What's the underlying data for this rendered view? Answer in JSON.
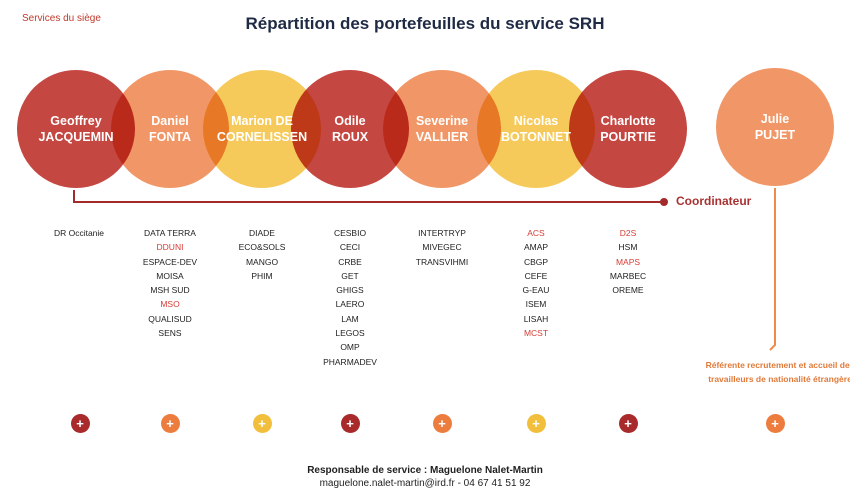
{
  "header": {
    "tag": "Services du siège",
    "title": "Répartition des portefeuilles du service SRH"
  },
  "people": [
    {
      "first": "Geoffrey",
      "last": "JACQUEMIN",
      "color": "dark"
    },
    {
      "first": "Daniel",
      "last": "FONTA",
      "color": "orange"
    },
    {
      "first": "Marion DE",
      "last": "CORNELISSEN",
      "color": "yellow"
    },
    {
      "first": "Odile",
      "last": "ROUX",
      "color": "dark"
    },
    {
      "first": "Severine",
      "last": "VALLIER",
      "color": "orange"
    },
    {
      "first": "Nicolas",
      "last": "BOTONNET",
      "color": "yellow"
    },
    {
      "first": "Charlotte",
      "last": "POURTIE",
      "color": "dark"
    },
    {
      "first": "Julie",
      "last": "PUJET",
      "color": "orange"
    }
  ],
  "coordinator_label": "Coordinateur",
  "portfolios": [
    [
      {
        "t": "DR Occitanie"
      }
    ],
    [
      {
        "t": "DATA TERRA"
      },
      {
        "t": "DDUNI",
        "red": true
      },
      {
        "t": "ESPACE-DEV"
      },
      {
        "t": "MOISA"
      },
      {
        "t": "MSH SUD"
      },
      {
        "t": "MSO",
        "red": true
      },
      {
        "t": "QUALISUD"
      },
      {
        "t": "SENS"
      }
    ],
    [
      {
        "t": "DIADE"
      },
      {
        "t": "ECO&SOLS"
      },
      {
        "t": "MANGO"
      },
      {
        "t": "PHIM"
      }
    ],
    [
      {
        "t": "CESBIO"
      },
      {
        "t": "CECI"
      },
      {
        "t": "CRBE"
      },
      {
        "t": "GET"
      },
      {
        "t": "GHIGS"
      },
      {
        "t": "LAERO"
      },
      {
        "t": "LAM"
      },
      {
        "t": "LEGOS"
      },
      {
        "t": "OMP"
      },
      {
        "t": "PHARMADEV"
      }
    ],
    [
      {
        "t": "INTERTRYP"
      },
      {
        "t": "MIVEGEC"
      },
      {
        "t": "TRANSVIHMI"
      }
    ],
    [
      {
        "t": "ACS",
        "red": true
      },
      {
        "t": "AMAP"
      },
      {
        "t": "CBGP"
      },
      {
        "t": "CEFE"
      },
      {
        "t": "G-EAU"
      },
      {
        "t": "ISEM"
      },
      {
        "t": "LISAH"
      },
      {
        "t": "MCST",
        "red": true
      }
    ],
    [
      {
        "t": "D2S",
        "red": true
      },
      {
        "t": "HSM"
      },
      {
        "t": "MAPS",
        "red": true
      },
      {
        "t": "MARBEC"
      },
      {
        "t": "OREME"
      }
    ]
  ],
  "referent_note": "Référente recrutement et accueil des travailleurs de nationalité étrangère",
  "plus_glyph": "+",
  "footer": {
    "responsible": "Responsable de service : Maguelone Nalet-Martin",
    "contact": "maguelone.nalet-martin@ird.fr - 04 67 41 51 92"
  }
}
